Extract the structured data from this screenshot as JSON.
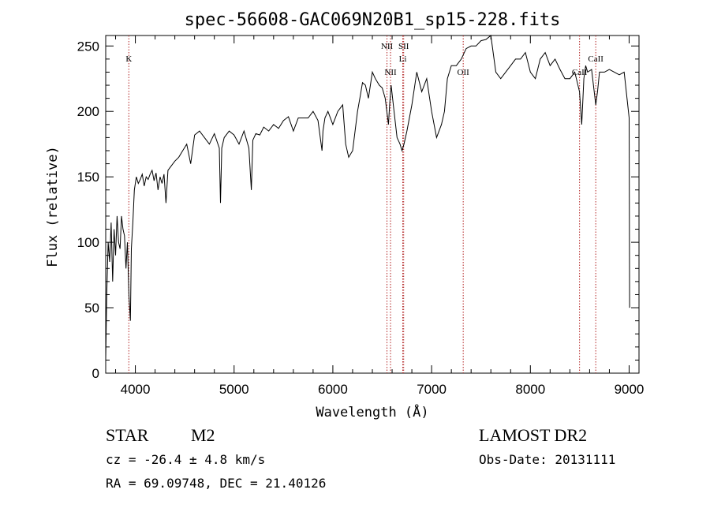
{
  "chart_data": {
    "type": "line",
    "title": "spec-56608-GAC069N20B1_sp15-228.fits",
    "xlabel": "Wavelength (Å)",
    "ylabel": "Flux (relative)",
    "xlim": [
      3700,
      9100
    ],
    "ylim": [
      0,
      258
    ],
    "xticks": [
      4000,
      5000,
      6000,
      7000,
      8000,
      9000
    ],
    "yticks": [
      0,
      50,
      100,
      150,
      200,
      250
    ],
    "grid": false,
    "line_color": "#000000",
    "marker_color": "#b22222",
    "series": [
      {
        "x": [
          3700,
          3710,
          3725,
          3740,
          3755,
          3770,
          3785,
          3800,
          3815,
          3830,
          3845,
          3860,
          3875,
          3890,
          3905,
          3920,
          3935,
          3950,
          3960,
          3975,
          3990,
          4010,
          4030,
          4050,
          4070,
          4090,
          4110,
          4130,
          4150,
          4170,
          4190,
          4210,
          4230,
          4250,
          4270,
          4290,
          4310,
          4330,
          4360,
          4400,
          4440,
          4480,
          4520,
          4560,
          4600,
          4650,
          4700,
          4750,
          4800,
          4850,
          4862,
          4875,
          4900,
          4950,
          5000,
          5050,
          5100,
          5150,
          5175,
          5190,
          5220,
          5260,
          5300,
          5350,
          5400,
          5450,
          5500,
          5550,
          5600,
          5650,
          5700,
          5750,
          5800,
          5850,
          5890,
          5900,
          5920,
          5950,
          6000,
          6050,
          6100,
          6130,
          6160,
          6200,
          6250,
          6280,
          6300,
          6330,
          6360,
          6400,
          6430,
          6470,
          6500,
          6530,
          6563,
          6575,
          6590,
          6620,
          6650,
          6680,
          6700,
          6720,
          6750,
          6800,
          6850,
          6900,
          6950,
          7000,
          7050,
          7100,
          7130,
          7160,
          7200,
          7250,
          7300,
          7350,
          7400,
          7450,
          7500,
          7550,
          7600,
          7650,
          7700,
          7750,
          7800,
          7850,
          7900,
          7950,
          8000,
          8050,
          8100,
          8150,
          8200,
          8250,
          8300,
          8350,
          8400,
          8450,
          8498,
          8520,
          8542,
          8560,
          8580,
          8620,
          8662,
          8680,
          8700,
          8750,
          8800,
          8850,
          8900,
          8950,
          9000,
          9005
        ],
        "y": [
          10,
          60,
          100,
          85,
          115,
          70,
          110,
          90,
          120,
          100,
          95,
          120,
          110,
          105,
          80,
          100,
          60,
          40,
          95,
          115,
          140,
          150,
          145,
          148,
          152,
          143,
          150,
          148,
          152,
          155,
          147,
          153,
          140,
          150,
          145,
          152,
          130,
          155,
          158,
          162,
          165,
          170,
          175,
          160,
          182,
          185,
          180,
          175,
          183,
          172,
          130,
          172,
          180,
          185,
          182,
          175,
          185,
          172,
          140,
          178,
          183,
          182,
          188,
          185,
          190,
          187,
          193,
          196,
          185,
          195,
          195,
          195,
          200,
          193,
          170,
          185,
          195,
          200,
          190,
          200,
          205,
          175,
          165,
          170,
          200,
          213,
          222,
          220,
          210,
          230,
          225,
          220,
          218,
          210,
          190,
          205,
          220,
          200,
          180,
          175,
          170,
          175,
          185,
          205,
          230,
          215,
          225,
          200,
          180,
          190,
          200,
          225,
          235,
          235,
          240,
          248,
          250,
          250,
          254,
          255,
          258,
          230,
          225,
          230,
          235,
          240,
          240,
          245,
          230,
          225,
          240,
          245,
          235,
          240,
          232,
          225,
          225,
          230,
          215,
          190,
          225,
          235,
          230,
          232,
          205,
          215,
          230,
          230,
          232,
          230,
          228,
          230,
          195,
          50
        ]
      }
    ],
    "annotations": [
      {
        "label": "K",
        "x": 3934
      },
      {
        "label": "NII",
        "x": 6548
      },
      {
        "label": "NII",
        "x": 6584
      },
      {
        "label": "SII",
        "x": 6717
      },
      {
        "label": "Li",
        "x": 6708
      },
      {
        "label": "OII",
        "x": 7320
      },
      {
        "label": "CaII",
        "x": 8498
      },
      {
        "label": "CaII",
        "x": 8662
      }
    ]
  },
  "footer": {
    "object_class": "STAR",
    "subclass": "M2",
    "cz_text": "cz = -26.4 ± 4.8 km/s",
    "coords_text": "RA =  69.09748, DEC =  21.40126",
    "survey": "LAMOST DR2",
    "obs_date": "Obs-Date: 20131111"
  }
}
